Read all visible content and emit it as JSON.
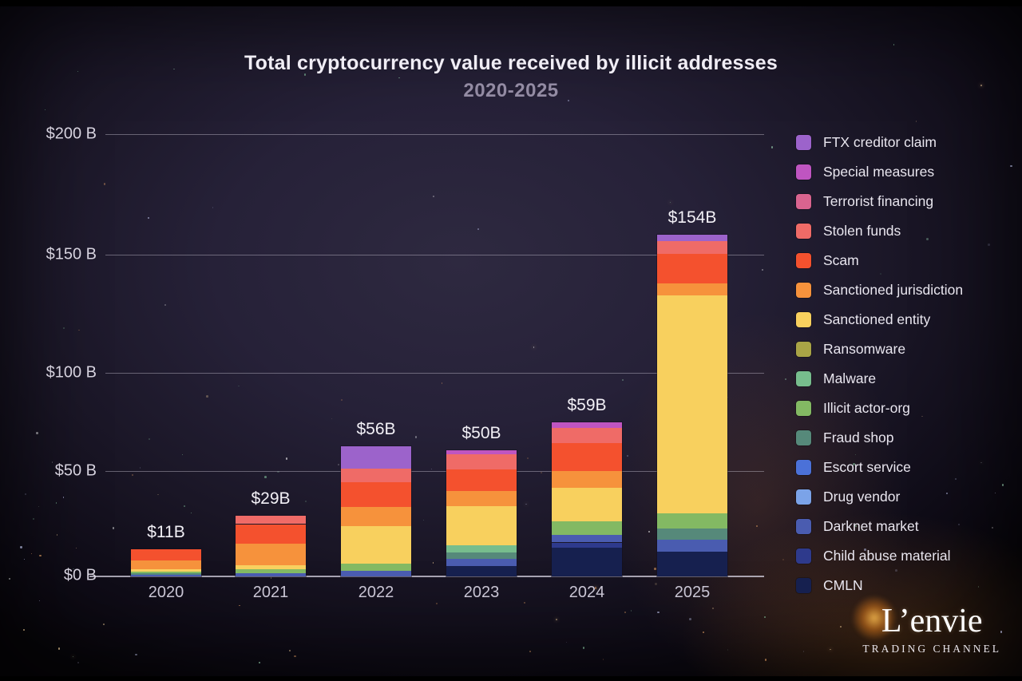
{
  "title": "Total cryptocurrency value received by illicit addresses",
  "subtitle": "2020-2025",
  "y_axis": {
    "ticks": [
      "$200 B",
      "$150 B",
      "$100 B",
      "$50 B",
      "$0 B"
    ],
    "values": [
      200,
      150,
      100,
      50,
      0
    ]
  },
  "chart_data": {
    "type": "bar",
    "stacked": true,
    "title": "Total cryptocurrency value received by illicit addresses",
    "subtitle": "2020-2025",
    "unit": "USD billions",
    "ylim": [
      0,
      200
    ],
    "grid": true,
    "legend_position": "right",
    "categories": [
      "2020",
      "2021",
      "2022",
      "2023",
      "2024",
      "2025"
    ],
    "totals": [
      11,
      29,
      56,
      50,
      59,
      154
    ],
    "total_labels": [
      "$11B",
      "$29B",
      "$56B",
      "$50B",
      "$59B",
      "$154B"
    ],
    "series": [
      {
        "key": "cmln",
        "name": "CMLN",
        "color": "#16204f",
        "values": [
          0,
          0,
          0,
          4,
          11,
          11
        ]
      },
      {
        "key": "child-abuse-material",
        "name": "Child abuse material",
        "color": "#2e3a8c",
        "values": [
          0,
          0,
          0,
          0,
          2,
          0
        ]
      },
      {
        "key": "darknet-market",
        "name": "Darknet market",
        "color": "#4a5cb0",
        "values": [
          0.6,
          1.5,
          2.5,
          3,
          3,
          5.5
        ]
      },
      {
        "key": "drug-vendor",
        "name": "Drug vendor",
        "color": "#7ba3e8",
        "values": [
          0,
          0,
          0,
          0,
          0,
          0
        ]
      },
      {
        "key": "escort-service",
        "name": "Escort service",
        "color": "#4b71d8",
        "values": [
          0,
          0,
          0,
          0,
          0,
          0
        ]
      },
      {
        "key": "fraud-shop",
        "name": "Fraud shop",
        "color": "#56897a",
        "values": [
          0.6,
          0,
          0,
          2.5,
          0,
          5
        ]
      },
      {
        "key": "illicit-actor-org",
        "name": "Illicit actor-org",
        "color": "#83b963",
        "values": [
          0.8,
          1.8,
          3,
          0,
          5,
          7
        ]
      },
      {
        "key": "malware",
        "name": "Malware",
        "color": "#77bd8d",
        "values": [
          0,
          0,
          0,
          3,
          0,
          0
        ]
      },
      {
        "key": "ransomware",
        "name": "Ransomware",
        "color": "#a9a446",
        "values": [
          0,
          0,
          0,
          0,
          0,
          0
        ]
      },
      {
        "key": "sanctioned-entity",
        "name": "Sanctioned entity",
        "color": "#f8d05e",
        "values": [
          1,
          2.2,
          16,
          15.5,
          13,
          98
        ]
      },
      {
        "key": "sanctioned-jurisdiction",
        "name": "Sanctioned jurisdiction",
        "color": "#f6923c",
        "values": [
          3.5,
          10,
          8.5,
          6,
          6.5,
          5.5
        ]
      },
      {
        "key": "scam",
        "name": "Scam",
        "color": "#f4512e",
        "values": [
          4.5,
          9.5,
          10.5,
          8.5,
          10.5,
          13.5
        ]
      },
      {
        "key": "stolen-funds",
        "name": "Stolen funds",
        "color": "#ef6b67",
        "values": [
          0,
          4,
          6,
          6,
          6,
          5.5
        ]
      },
      {
        "key": "terrorist-financing",
        "name": "Terrorist financing",
        "color": "#d9648f",
        "values": [
          0,
          0,
          0,
          0,
          0,
          0
        ]
      },
      {
        "key": "special-measures",
        "name": "Special measures",
        "color": "#bf55c1",
        "values": [
          0,
          0,
          0,
          1.5,
          2,
          0
        ]
      },
      {
        "key": "ftx-creditor-claim",
        "name": "FTX creditor claim",
        "color": "#9c63cb",
        "values": [
          0,
          0,
          9.5,
          0,
          0,
          3
        ]
      }
    ]
  },
  "watermark": {
    "name": "L’envie",
    "tagline": "TRADING CHANNEL"
  }
}
